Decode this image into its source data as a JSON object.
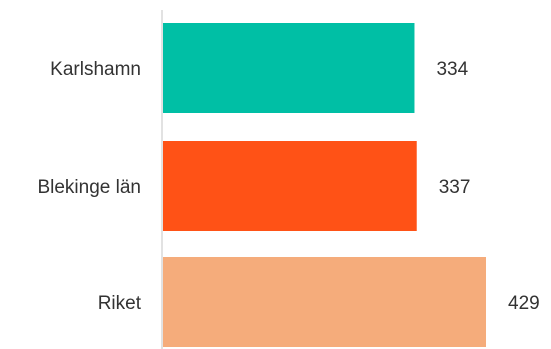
{
  "chart_data": {
    "type": "bar",
    "orientation": "horizontal",
    "categories": [
      "Karlshamn",
      "Blekinge län",
      "Riket"
    ],
    "values": [
      334,
      337,
      429
    ],
    "value_labels": [
      "334",
      "337",
      "429"
    ],
    "colors": [
      "#00BFA5",
      "#FF5216",
      "#F5AC7B"
    ],
    "xlim": [
      0,
      525
    ],
    "grid": false,
    "legend": "none",
    "axis_color": "#D9D9D9"
  }
}
